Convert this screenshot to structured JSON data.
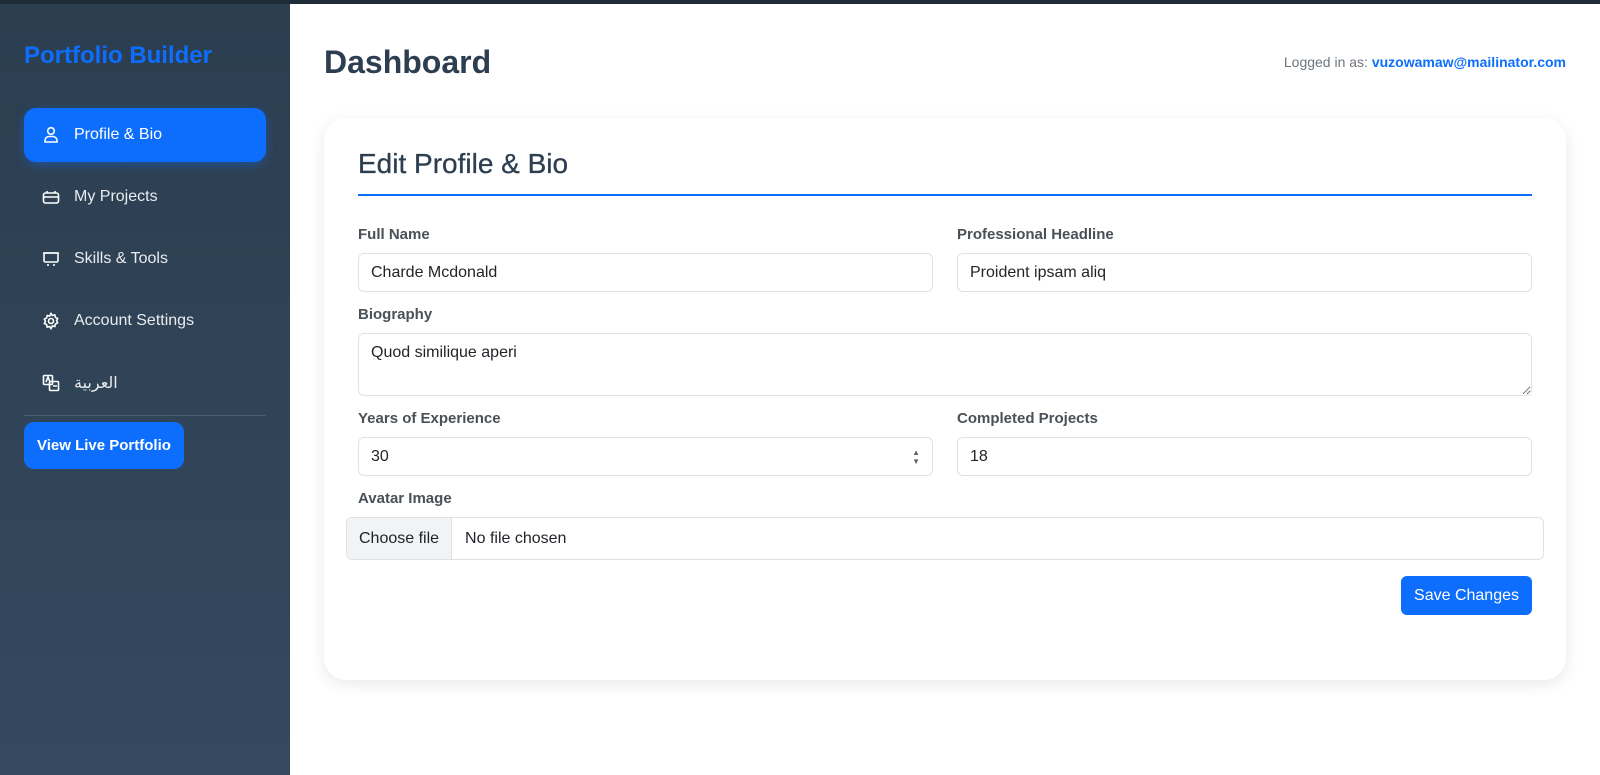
{
  "sidebar": {
    "brand": "Portfolio Builder",
    "items": [
      {
        "label": "Profile & Bio",
        "icon": "user-icon",
        "active": true
      },
      {
        "label": "My Projects",
        "icon": "briefcase-icon"
      },
      {
        "label": "Skills & Tools",
        "icon": "easel-icon"
      },
      {
        "label": "Account Settings",
        "icon": "gear-icon"
      },
      {
        "label": "العربية",
        "icon": "translate-icon"
      }
    ],
    "live_button": "View Live Portfolio"
  },
  "header": {
    "title": "Dashboard",
    "logged_in_label": "Logged in as:",
    "email": "vuzowamaw@mailinator.com"
  },
  "form": {
    "title": "Edit Profile & Bio",
    "full_name": {
      "label": "Full Name",
      "value": "Charde Mcdonald"
    },
    "headline": {
      "label": "Professional Headline",
      "value": "Proident ipsam aliq"
    },
    "biography": {
      "label": "Biography",
      "value": "Quod similique aperi"
    },
    "years": {
      "label": "Years of Experience",
      "value": "30"
    },
    "projects": {
      "label": "Completed Projects",
      "value": "18"
    },
    "avatar": {
      "label": "Avatar Image",
      "button": "Choose file",
      "status": "No file chosen"
    },
    "save": "Save Changes"
  },
  "colors": {
    "accent": "#0d6efd",
    "sidebar": "#2c3e50"
  }
}
